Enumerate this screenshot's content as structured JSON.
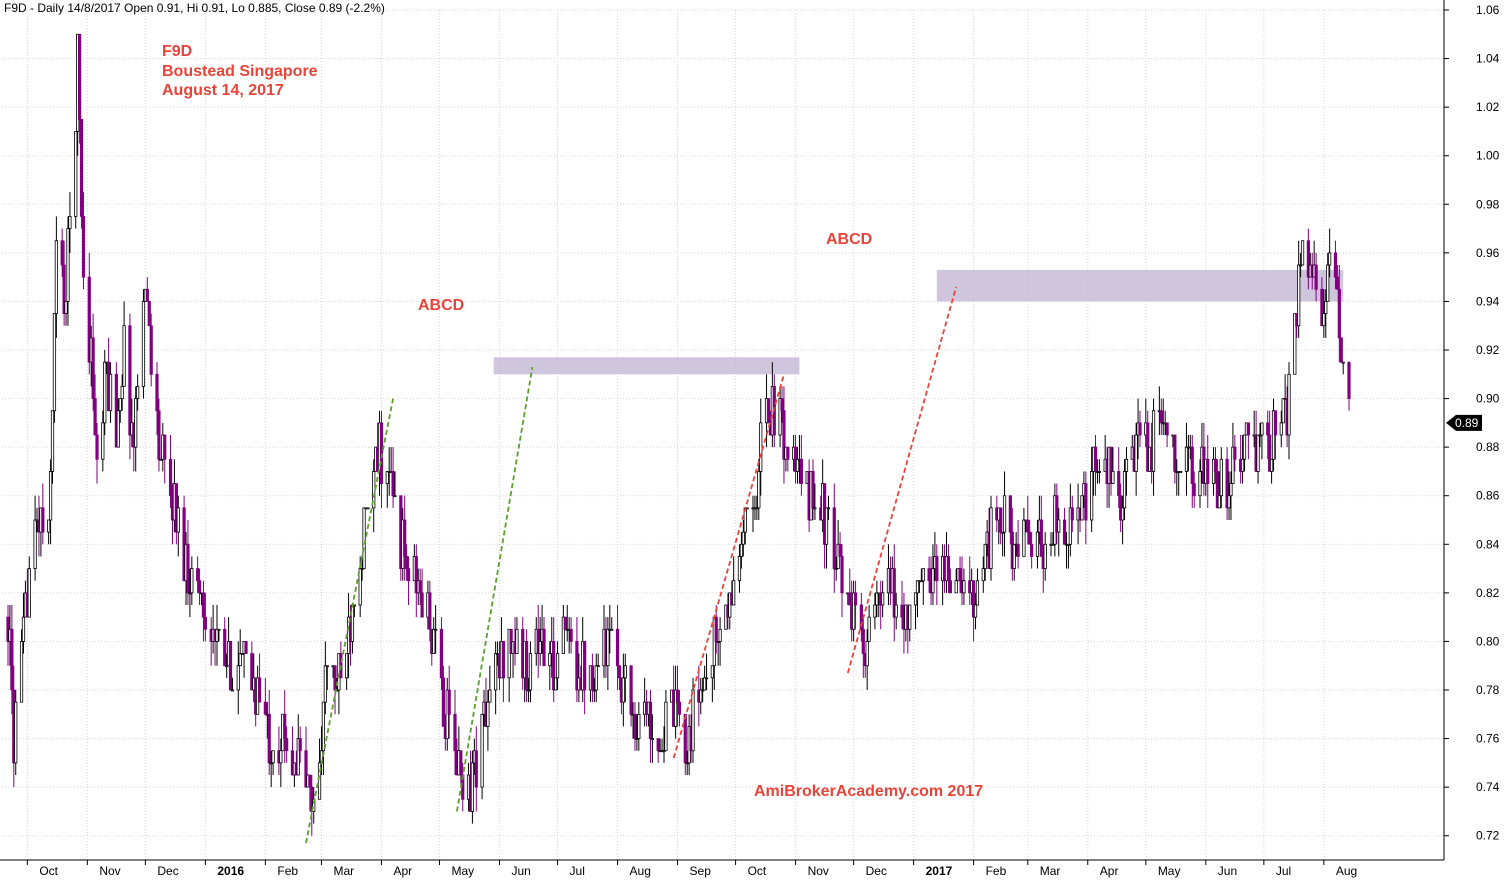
{
  "chart_data": {
    "type": "candlestick",
    "header": "F9D - Daily 14/8/2017 Open 0.91, Hi 0.91, Lo 0.885, Close 0.89 (-2.2%)",
    "title_lines": [
      "F9D",
      "Boustead Singapore",
      "August 14, 2017"
    ],
    "annotations": [
      "ABCD",
      "ABCD"
    ],
    "watermark": "AmiBrokerAcademy.com   2017",
    "last_price_label": "0.89",
    "ylim": [
      0.71,
      1.06
    ],
    "y_ticks": [
      0.72,
      0.74,
      0.76,
      0.78,
      0.8,
      0.82,
      0.84,
      0.86,
      0.88,
      0.9,
      0.92,
      0.94,
      0.96,
      0.98,
      1.0,
      1.02,
      1.04,
      1.06
    ],
    "y_tick_labels": [
      "0.72",
      "0.74",
      "0.76",
      "0.78",
      "0.80",
      "0.82",
      "0.84",
      "0.86",
      "0.88",
      "0.90",
      "0.92",
      "0.94",
      "0.96",
      "0.98",
      "1.00",
      "1.02",
      "1.04",
      "1.06"
    ],
    "x_ticks": [
      {
        "label": "Oct",
        "date": "2015-10"
      },
      {
        "label": "Nov",
        "date": "2015-11"
      },
      {
        "label": "Dec",
        "date": "2015-12"
      },
      {
        "label": "2016",
        "date": "2016-01",
        "bold": true
      },
      {
        "label": "Feb",
        "date": "2016-02"
      },
      {
        "label": "Mar",
        "date": "2016-03"
      },
      {
        "label": "Apr",
        "date": "2016-04"
      },
      {
        "label": "May",
        "date": "2016-05"
      },
      {
        "label": "Jun",
        "date": "2016-06"
      },
      {
        "label": "Jul",
        "date": "2016-07"
      },
      {
        "label": "Aug",
        "date": "2016-08"
      },
      {
        "label": "Sep",
        "date": "2016-09"
      },
      {
        "label": "Oct",
        "date": "2016-10"
      },
      {
        "label": "Nov",
        "date": "2016-11"
      },
      {
        "label": "Dec",
        "date": "2016-12"
      },
      {
        "label": "2017",
        "date": "2017-01",
        "bold": true
      },
      {
        "label": "Feb",
        "date": "2017-02"
      },
      {
        "label": "Mar",
        "date": "2017-03"
      },
      {
        "label": "Apr",
        "date": "2017-04"
      },
      {
        "label": "May",
        "date": "2017-05"
      },
      {
        "label": "Jun",
        "date": "2017-06"
      },
      {
        "label": "Jul",
        "date": "2017-07"
      },
      {
        "label": "Aug",
        "date": "2017-08"
      }
    ],
    "price_path": [
      [
        "2015-09-21",
        0.81
      ],
      [
        "2015-09-24",
        0.76
      ],
      [
        "2015-09-28",
        0.79
      ],
      [
        "2015-10-02",
        0.83
      ],
      [
        "2015-10-07",
        0.85
      ],
      [
        "2015-10-12",
        0.84
      ],
      [
        "2015-10-16",
        0.96
      ],
      [
        "2015-10-21",
        0.94
      ],
      [
        "2015-10-27",
        1.04
      ],
      [
        "2015-10-30",
        0.95
      ],
      [
        "2015-11-03",
        0.92
      ],
      [
        "2015-11-06",
        0.87
      ],
      [
        "2015-11-11",
        0.91
      ],
      [
        "2015-11-16",
        0.89
      ],
      [
        "2015-11-20",
        0.92
      ],
      [
        "2015-11-25",
        0.88
      ],
      [
        "2015-11-30",
        0.95
      ],
      [
        "2015-12-03",
        0.93
      ],
      [
        "2015-12-08",
        0.88
      ],
      [
        "2015-12-14",
        0.86
      ],
      [
        "2015-12-18",
        0.85
      ],
      [
        "2015-12-23",
        0.83
      ],
      [
        "2015-12-30",
        0.82
      ],
      [
        "2016-01-06",
        0.8
      ],
      [
        "2016-01-13",
        0.79
      ],
      [
        "2016-01-21",
        0.79
      ],
      [
        "2016-01-28",
        0.78
      ],
      [
        "2016-02-03",
        0.76
      ],
      [
        "2016-02-12",
        0.76
      ],
      [
        "2016-02-19",
        0.75
      ],
      [
        "2016-02-26",
        0.73
      ],
      [
        "2016-03-04",
        0.79
      ],
      [
        "2016-03-11",
        0.78
      ],
      [
        "2016-03-17",
        0.82
      ],
      [
        "2016-03-24",
        0.85
      ],
      [
        "2016-03-31",
        0.88
      ],
      [
        "2016-04-07",
        0.86
      ],
      [
        "2016-04-14",
        0.83
      ],
      [
        "2016-04-21",
        0.82
      ],
      [
        "2016-04-28",
        0.8
      ],
      [
        "2016-05-04",
        0.77
      ],
      [
        "2016-05-10",
        0.75
      ],
      [
        "2016-05-17",
        0.74
      ],
      [
        "2016-05-24",
        0.77
      ],
      [
        "2016-05-31",
        0.79
      ],
      [
        "2016-06-07",
        0.8
      ],
      [
        "2016-06-14",
        0.79
      ],
      [
        "2016-06-21",
        0.8
      ],
      [
        "2016-06-28",
        0.79
      ],
      [
        "2016-07-05",
        0.8
      ],
      [
        "2016-07-12",
        0.79
      ],
      [
        "2016-07-19",
        0.79
      ],
      [
        "2016-07-26",
        0.8
      ],
      [
        "2016-08-02",
        0.79
      ],
      [
        "2016-08-09",
        0.77
      ],
      [
        "2016-08-16",
        0.77
      ],
      [
        "2016-08-23",
        0.76
      ],
      [
        "2016-08-30",
        0.77
      ],
      [
        "2016-09-06",
        0.76
      ],
      [
        "2016-09-13",
        0.78
      ],
      [
        "2016-09-20",
        0.8
      ],
      [
        "2016-09-27",
        0.81
      ],
      [
        "2016-10-04",
        0.84
      ],
      [
        "2016-10-11",
        0.86
      ],
      [
        "2016-10-17",
        0.9
      ],
      [
        "2016-10-24",
        0.89
      ],
      [
        "2016-10-31",
        0.87
      ],
      [
        "2016-11-07",
        0.86
      ],
      [
        "2016-11-14",
        0.86
      ],
      [
        "2016-11-21",
        0.83
      ],
      [
        "2016-11-28",
        0.82
      ],
      [
        "2016-12-05",
        0.8
      ],
      [
        "2016-12-12",
        0.81
      ],
      [
        "2016-12-19",
        0.82
      ],
      [
        "2016-12-27",
        0.81
      ],
      [
        "2017-01-04",
        0.82
      ],
      [
        "2017-01-11",
        0.83
      ],
      [
        "2017-01-18",
        0.83
      ],
      [
        "2017-01-25",
        0.82
      ],
      [
        "2017-02-01",
        0.82
      ],
      [
        "2017-02-08",
        0.84
      ],
      [
        "2017-02-15",
        0.85
      ],
      [
        "2017-02-22",
        0.84
      ],
      [
        "2017-03-01",
        0.84
      ],
      [
        "2017-03-08",
        0.84
      ],
      [
        "2017-03-15",
        0.85
      ],
      [
        "2017-03-22",
        0.85
      ],
      [
        "2017-03-29",
        0.85
      ],
      [
        "2017-04-05",
        0.87
      ],
      [
        "2017-04-12",
        0.87
      ],
      [
        "2017-04-19",
        0.86
      ],
      [
        "2017-04-26",
        0.88
      ],
      [
        "2017-05-03",
        0.88
      ],
      [
        "2017-05-10",
        0.89
      ],
      [
        "2017-05-17",
        0.88
      ],
      [
        "2017-05-24",
        0.87
      ],
      [
        "2017-05-31",
        0.87
      ],
      [
        "2017-06-07",
        0.86
      ],
      [
        "2017-06-14",
        0.87
      ],
      [
        "2017-06-21",
        0.88
      ],
      [
        "2017-06-28",
        0.88
      ],
      [
        "2017-07-05",
        0.88
      ],
      [
        "2017-07-12",
        0.89
      ],
      [
        "2017-07-17",
        0.93
      ],
      [
        "2017-07-20",
        0.96
      ],
      [
        "2017-07-25",
        0.96
      ],
      [
        "2017-07-31",
        0.94
      ],
      [
        "2017-08-04",
        0.95
      ],
      [
        "2017-08-09",
        0.93
      ],
      [
        "2017-08-14",
        0.89
      ]
    ],
    "resistance_zones": [
      {
        "x_start": "2016-05-29",
        "x_end": "2016-11-03",
        "y_low": 0.91,
        "y_high": 0.917
      },
      {
        "x_start": "2017-01-13",
        "x_end": "2017-08-11",
        "y_low": 0.94,
        "y_high": 0.953
      }
    ],
    "trend_lines": [
      {
        "color": "#5aa02c",
        "from": [
          "2016-02-22",
          0.717
        ],
        "to": [
          "2016-04-07",
          0.9
        ]
      },
      {
        "color": "#5aa02c",
        "from": [
          "2016-05-10",
          0.73
        ],
        "to": [
          "2016-06-18",
          0.913
        ]
      },
      {
        "color": "#e8443a",
        "from": [
          "2016-08-30",
          0.752
        ],
        "to": [
          "2016-10-26",
          0.91
        ]
      },
      {
        "color": "#e8443a",
        "from": [
          "2016-11-28",
          0.787
        ],
        "to": [
          "2017-01-23",
          0.946
        ]
      }
    ],
    "candle_color": "#800080",
    "grid": true,
    "grid_color": "#d6d6d6"
  }
}
